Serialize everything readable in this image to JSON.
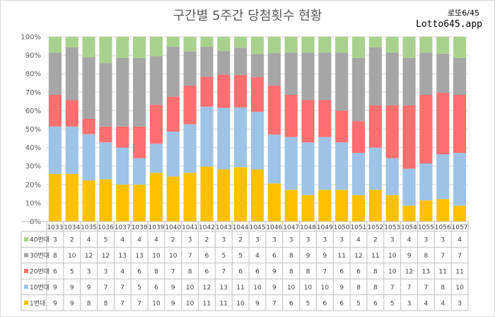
{
  "title": "구간별 5주간 당첨횟수 현황",
  "brand": {
    "label": "로또6/45",
    "site": "Lotto645.app"
  },
  "chart_data": {
    "type": "bar",
    "stacked": true,
    "percent_stacked": true,
    "categories": [
      "1033",
      "1034",
      "1035",
      "1036",
      "1037",
      "1038",
      "1039",
      "1040",
      "1041",
      "1042",
      "1043",
      "1044",
      "1045",
      "1046",
      "1047",
      "1048",
      "1049",
      "1050",
      "1051",
      "1052",
      "1053",
      "1054",
      "1055",
      "1056",
      "1057"
    ],
    "yticks": [
      "0%",
      "10%",
      "20%",
      "30%",
      "40%",
      "50%",
      "60%",
      "70%",
      "80%",
      "90%",
      "100%"
    ],
    "ylim": [
      0,
      100
    ],
    "grid": true,
    "legend": "data-table",
    "series": [
      {
        "name": "1번대",
        "color": "#ffc000",
        "values": [
          9,
          9,
          8,
          8,
          7,
          7,
          10,
          9,
          10,
          11,
          11,
          10,
          9,
          7,
          6,
          5,
          6,
          6,
          5,
          6,
          5,
          3,
          4,
          4,
          3
        ]
      },
      {
        "name": "10번대",
        "color": "#9dc3e6",
        "values": [
          9,
          9,
          9,
          7,
          7,
          5,
          6,
          9,
          10,
          12,
          13,
          11,
          10,
          9,
          10,
          10,
          10,
          9,
          8,
          8,
          7,
          7,
          7,
          8,
          10
        ]
      },
      {
        "name": "20번대",
        "color": "#ff6f6f",
        "values": [
          6,
          5,
          3,
          3,
          4,
          6,
          8,
          7,
          8,
          6,
          7,
          6,
          6,
          9,
          8,
          8,
          7,
          6,
          6,
          8,
          10,
          12,
          13,
          11,
          11
        ]
      },
      {
        "name": "30번대",
        "color": "#a6a6a6",
        "values": [
          8,
          10,
          12,
          12,
          13,
          13,
          10,
          10,
          7,
          6,
          5,
          5,
          4,
          6,
          8,
          9,
          9,
          11,
          12,
          11,
          10,
          9,
          8,
          7,
          7
        ]
      },
      {
        "name": "40번대",
        "color": "#a9d18e",
        "values": [
          3,
          2,
          4,
          5,
          4,
          4,
          4,
          2,
          3,
          2,
          3,
          2,
          3,
          3,
          3,
          3,
          3,
          3,
          4,
          2,
          3,
          4,
          3,
          3,
          4
        ]
      }
    ]
  }
}
